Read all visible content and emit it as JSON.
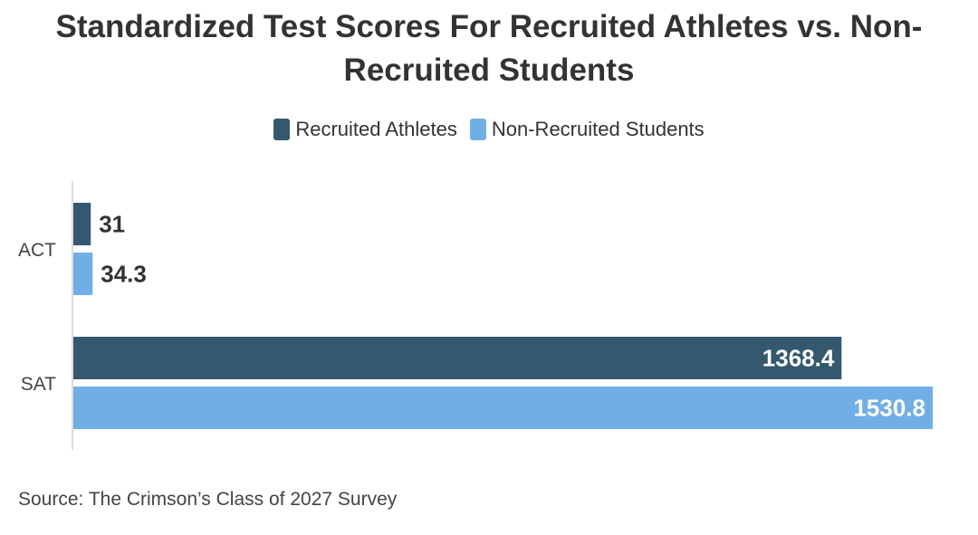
{
  "chart_data": {
    "type": "bar",
    "orientation": "horizontal",
    "title_lines": [
      "Standardized Test Scores For Recruited Athletes vs. Non-",
      "Recruited Students"
    ],
    "categories": [
      "ACT",
      "SAT"
    ],
    "series": [
      {
        "name": "Recruited Athletes",
        "values": [
          31,
          1368.4
        ],
        "color": "#34596f"
      },
      {
        "name": "Non-Recruited Students",
        "values": [
          34.3,
          1530.8
        ],
        "color": "#72aee6"
      }
    ],
    "value_labels": [
      [
        "31",
        "1368.4"
      ],
      [
        "34.3",
        "1530.8"
      ]
    ],
    "xlim": [
      0,
      1530.8
    ],
    "legend_position": "top-center",
    "grid": false
  },
  "source": "Source: The Crimson’s Class of 2027 Survey"
}
